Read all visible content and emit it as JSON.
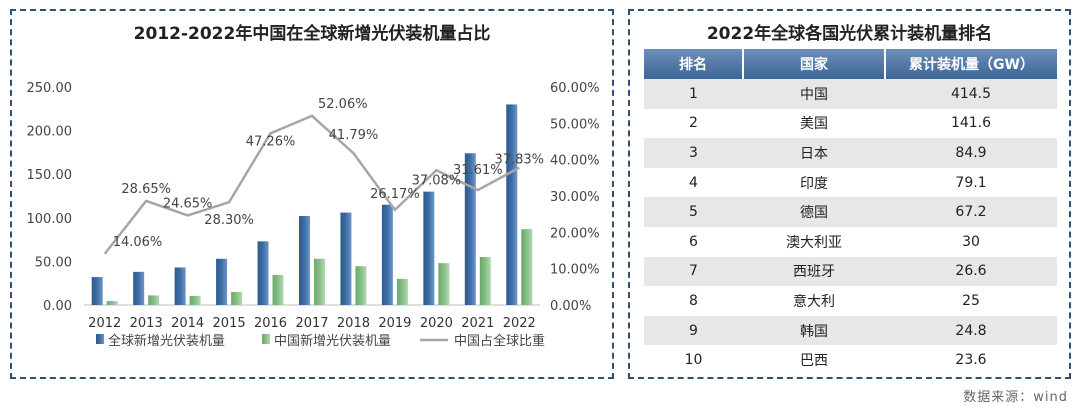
{
  "left_title": "2012-2022年中国在全球新增光伏装机量占比",
  "right_title": "2022年全球各国光伏累计装机量排名",
  "source": "数据来源：wind",
  "colors": {
    "global_bar": "#3e6ea6",
    "china_bar": "#86bf86",
    "share_line": "#a6a6a6",
    "table_header": "#4a72a2",
    "border": "#2f4f73"
  },
  "chart_data": {
    "type": "bar",
    "title": "2012-2022年中国在全球新增光伏装机量占比",
    "categories": [
      "2012",
      "2013",
      "2014",
      "2015",
      "2016",
      "2017",
      "2018",
      "2019",
      "2020",
      "2021",
      "2022"
    ],
    "series": [
      {
        "name": "全球新增光伏装机量",
        "type": "bar",
        "axis": "left",
        "values": [
          32,
          38,
          43,
          53,
          73,
          102,
          106,
          115,
          130,
          174,
          230
        ]
      },
      {
        "name": "中国新增光伏装机量",
        "type": "bar",
        "axis": "left",
        "values": [
          4.5,
          11,
          10.5,
          15,
          34.5,
          53,
          44.5,
          30,
          48,
          55,
          87
        ]
      },
      {
        "name": "中国占全球比重",
        "type": "line",
        "axis": "right",
        "values": [
          14.06,
          28.65,
          24.65,
          28.3,
          47.26,
          52.06,
          41.79,
          26.17,
          37.08,
          31.61,
          37.83
        ],
        "labels": [
          "14.06%",
          "28.65%",
          "24.65%",
          "28.30%",
          "47.26%",
          "52.06%",
          "41.79%",
          "26.17%",
          "37.08%",
          "31.61%",
          "37.83%"
        ]
      }
    ],
    "y_left": {
      "min": 0,
      "max": 250,
      "ticks": [
        "0.00",
        "50.00",
        "100.00",
        "150.00",
        "200.00",
        "250.00"
      ]
    },
    "y_right": {
      "min": 0,
      "max": 60,
      "ticks": [
        "0.00%",
        "10.00%",
        "20.00%",
        "30.00%",
        "40.00%",
        "50.00%",
        "60.00%"
      ]
    },
    "grid": false,
    "legend_position": "bottom"
  },
  "table": {
    "headers": [
      "排名",
      "国家",
      "累计装机量（GW）"
    ],
    "rows": [
      [
        "1",
        "中国",
        "414.5"
      ],
      [
        "2",
        "美国",
        "141.6"
      ],
      [
        "3",
        "日本",
        "84.9"
      ],
      [
        "4",
        "印度",
        "79.1"
      ],
      [
        "5",
        "德国",
        "67.2"
      ],
      [
        "6",
        "澳大利亚",
        "30"
      ],
      [
        "7",
        "西班牙",
        "26.6"
      ],
      [
        "8",
        "意大利",
        "25"
      ],
      [
        "9",
        "韩国",
        "24.8"
      ],
      [
        "10",
        "巴西",
        "23.6"
      ]
    ]
  }
}
